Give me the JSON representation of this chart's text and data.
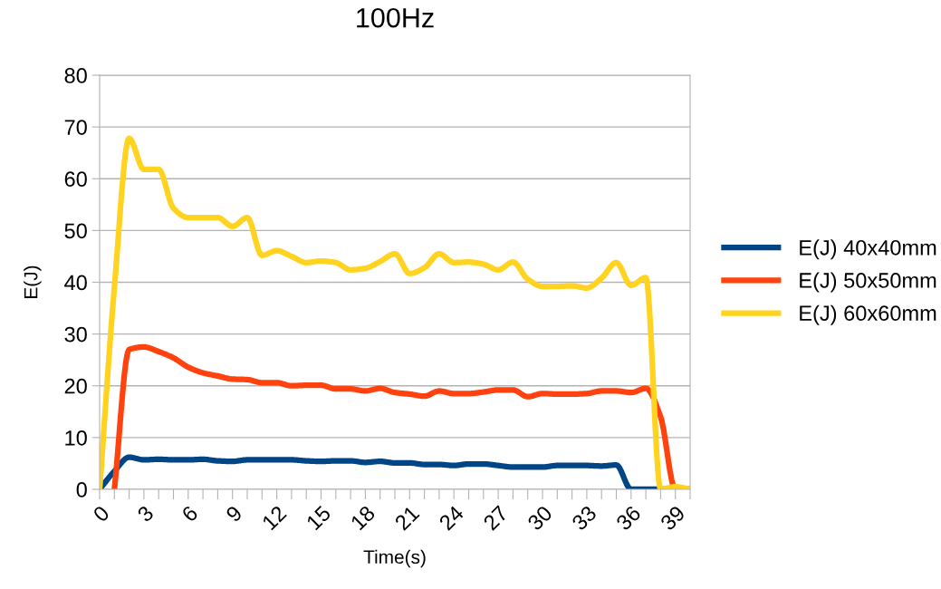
{
  "chart_data": {
    "type": "line",
    "title": "100Hz",
    "xlabel": "Time(s)",
    "ylabel": "E(J)",
    "x": [
      0,
      1,
      2,
      3,
      4,
      5,
      6,
      7,
      8,
      9,
      10,
      11,
      12,
      13,
      14,
      15,
      16,
      17,
      18,
      19,
      20,
      21,
      22,
      23,
      24,
      25,
      26,
      27,
      28,
      29,
      30,
      31,
      32,
      33,
      34,
      35,
      36,
      37,
      38,
      39,
      40
    ],
    "series": [
      {
        "name": "E(J) 40x40mm",
        "color": "#004586",
        "values": [
          0,
          3.5,
          6.2,
          5.7,
          5.8,
          5.7,
          5.7,
          5.8,
          5.5,
          5.4,
          5.7,
          5.7,
          5.7,
          5.7,
          5.5,
          5.4,
          5.5,
          5.5,
          5.2,
          5.4,
          5.1,
          5.1,
          4.8,
          4.8,
          4.6,
          4.9,
          4.9,
          4.6,
          4.3,
          4.3,
          4.3,
          4.6,
          4.6,
          4.6,
          4.5,
          4.7,
          0,
          0,
          0,
          0,
          0
        ]
      },
      {
        "name": "E(J) 50x50mm",
        "color": "#ff420e",
        "values": [
          null,
          0,
          27,
          27.5,
          26.6,
          25.4,
          23.6,
          22.5,
          21.9,
          21.3,
          21.2,
          20.6,
          20.6,
          20.0,
          20.1,
          20.1,
          19.4,
          19.4,
          19.0,
          19.5,
          18.7,
          18.4,
          18.0,
          19.0,
          18.5,
          18.5,
          18.8,
          19.2,
          19.2,
          17.9,
          18.5,
          18.4,
          18.4,
          18.5,
          19.0,
          19.0,
          18.7,
          19.5,
          14,
          0,
          0
        ]
      },
      {
        "name": "E(J) 60x60mm",
        "color": "#ffd320",
        "values": [
          0,
          39,
          67.8,
          61.8,
          61.8,
          54.3,
          52.5,
          52.5,
          52.5,
          50.8,
          52.5,
          45.2,
          46.1,
          45,
          43.8,
          44.1,
          43.8,
          42.4,
          42.7,
          44.0,
          45.5,
          41.7,
          42.8,
          45.5,
          43.8,
          43.9,
          43.5,
          42.4,
          43.9,
          40.6,
          39.2,
          39.2,
          39.3,
          38.9,
          40.8,
          43.8,
          39.4,
          40.9,
          0,
          0.5,
          0
        ]
      }
    ],
    "xlim": [
      0,
      40
    ],
    "xticks": [
      0,
      {
        "value": 1,
        "label": null
      },
      {
        "value": 2,
        "label": null
      },
      3,
      {
        "value": 4,
        "label": null
      },
      {
        "value": 5,
        "label": null
      },
      6,
      {
        "value": 7,
        "label": null
      },
      {
        "value": 8,
        "label": null
      },
      9,
      {
        "value": 10,
        "label": null
      },
      {
        "value": 11,
        "label": null
      },
      12,
      {
        "value": 13,
        "label": null
      },
      {
        "value": 14,
        "label": null
      },
      15,
      {
        "value": 16,
        "label": null
      },
      {
        "value": 17,
        "label": null
      },
      18,
      {
        "value": 19,
        "label": null
      },
      {
        "value": 20,
        "label": null
      },
      21,
      {
        "value": 22,
        "label": null
      },
      {
        "value": 23,
        "label": null
      },
      24,
      {
        "value": 25,
        "label": null
      },
      {
        "value": 26,
        "label": null
      },
      27,
      {
        "value": 28,
        "label": null
      },
      {
        "value": 29,
        "label": null
      },
      30,
      {
        "value": 31,
        "label": null
      },
      {
        "value": 32,
        "label": null
      },
      33,
      {
        "value": 34,
        "label": null
      },
      {
        "value": 35,
        "label": null
      },
      36,
      {
        "value": 37,
        "label": null
      },
      {
        "value": 38,
        "label": null
      },
      39,
      {
        "value": 40,
        "label": null
      }
    ],
    "ylim": [
      0,
      80
    ],
    "yticks": [
      0,
      10,
      20,
      30,
      40,
      50,
      60,
      70,
      80
    ],
    "grid": "y",
    "legend": "right",
    "marker": "none",
    "line_style": "solid"
  }
}
